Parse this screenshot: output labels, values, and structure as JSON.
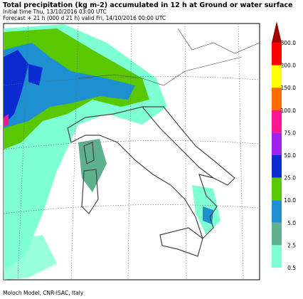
{
  "header": {
    "title": "Total precipitation (kg m-2) accumulated in  12 h at Ground or water surface",
    "lines": [
      "Initial time  Thu, 13/10/2016  03:00 UTC",
      "Forecast  +  21 h  (000 d 21 h)  valid Fri, 14/10/2016 00:00 UTC"
    ]
  },
  "legend": {
    "items": [
      {
        "label": "300.0",
        "color": "#a00000"
      },
      {
        "label": "200.0",
        "color": "#ff0000"
      },
      {
        "label": "150.0",
        "color": "#ffff00"
      },
      {
        "label": "100.0",
        "color": "#ff6a00"
      },
      {
        "label": "75.0",
        "color": "#ff1493"
      },
      {
        "label": "50.0",
        "color": "#a020f0"
      },
      {
        "label": "25.0",
        "color": "#0a2bd0"
      },
      {
        "label": "10.0",
        "color": "#5ac800"
      },
      {
        "label": "5.0",
        "color": "#1e8fd0"
      },
      {
        "label": "2.5",
        "color": "#5fb08c"
      },
      {
        "label": "0.5",
        "color": "#7fffd4"
      }
    ]
  },
  "footer": "Moloch Model, CNR-ISAC, Italy"
}
